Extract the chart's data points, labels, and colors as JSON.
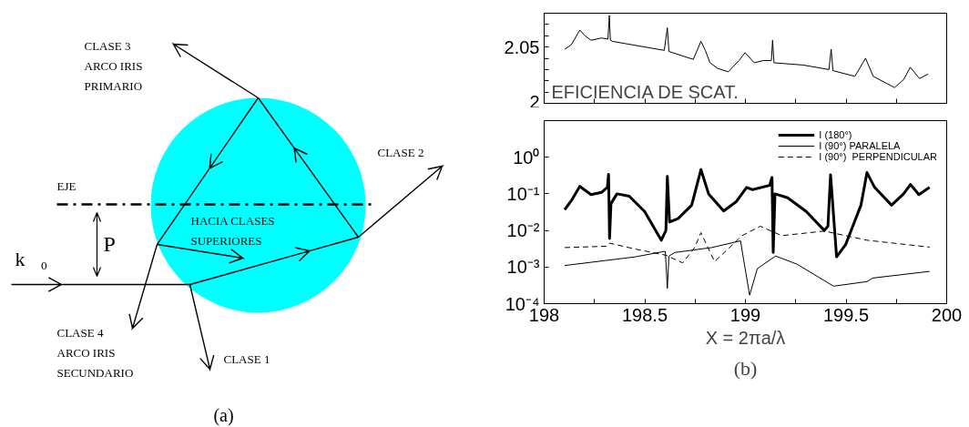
{
  "chart_data": [
    {
      "type": "other",
      "annotations": [
        "CLASE 3",
        "ARCO IRIS",
        "PRIMARIO",
        "CLASE 2",
        "EJE",
        "HACIA CLASES",
        "SUPERIORES",
        "P",
        "k⃗₀",
        "CLASE 4",
        "ARCO IRIS",
        "SECUNDARIO",
        "CLASE 1",
        "(a)"
      ]
    },
    {
      "type": "line",
      "annotations": [
        "EFICIENCIA DE SCAT."
      ],
      "xlim": [
        198,
        200
      ],
      "xticks": [
        {
          "value": 198,
          "label": null
        },
        {
          "value": 198.25,
          "label": null
        },
        {
          "value": 198.5,
          "label": null
        },
        {
          "value": 198.75,
          "label": null
        },
        {
          "value": 199,
          "label": null
        },
        {
          "value": 199.25,
          "label": null
        },
        {
          "value": 199.5,
          "label": null
        },
        {
          "value": 199.75,
          "label": null
        },
        {
          "value": 200,
          "label": null
        }
      ],
      "ylim": [
        2,
        2.08
      ],
      "yticks": [
        2,
        {
          "value": 2.01,
          "label": null
        },
        {
          "value": 2.02,
          "label": null
        },
        {
          "value": 2.03,
          "label": null
        },
        {
          "value": 2.04,
          "label": null
        },
        2.05,
        {
          "value": 2.06,
          "label": null
        },
        {
          "value": 2.07,
          "label": null
        },
        {
          "value": 2.08,
          "label": null
        }
      ],
      "tick_labels": "y",
      "grid": false,
      "legend": false,
      "series": [
        {
          "color": "#000000",
          "x": [
            198.102,
            198.135,
            198.177,
            198.203,
            198.233,
            198.286,
            198.317,
            198.324,
            198.329,
            198.34,
            198.597,
            198.612,
            198.62,
            198.741,
            198.779,
            198.801,
            198.824,
            198.862,
            198.915,
            198.968,
            198.998,
            199.044,
            199.089,
            199.129,
            199.135,
            199.142,
            199.286,
            199.415,
            199.426,
            199.435,
            199.544,
            199.597,
            199.635,
            199.741,
            199.786,
            199.819,
            199.865,
            199.908
          ],
          "values": [
            2.048,
            2.052,
            2.065,
            2.06,
            2.056,
            2.058,
            2.057,
            2.078,
            2.056,
            2.055,
            2.047,
            2.067,
            2.046,
            2.039,
            2.055,
            2.047,
            2.036,
            2.031,
            2.028,
            2.038,
            2.045,
            2.036,
            2.038,
            2.038,
            2.056,
            2.036,
            2.034,
            2.03,
            2.048,
            2.029,
            2.024,
            2.04,
            2.024,
            2.014,
            2.021,
            2.032,
            2.022,
            2.026
          ]
        }
      ]
    },
    {
      "type": "line",
      "xlabel": "X = 2πa/λ",
      "annotations": [
        "(b)"
      ],
      "log": "y",
      "grid": false,
      "legend": "top right",
      "xlim": [
        198,
        200
      ],
      "xticks": [
        198,
        {
          "value": 198.25,
          "label": null
        },
        198.5,
        {
          "value": 198.75,
          "label": null
        },
        199,
        {
          "value": 199.25,
          "label": null
        },
        199.5,
        {
          "value": 199.75,
          "label": null
        },
        200
      ],
      "ylim": [
        0.0001,
        10
      ],
      "yticks": [
        {
          "value": 0.0001,
          "label": "10⁻⁴"
        },
        {
          "value": 0.001,
          "label": "10⁻³"
        },
        {
          "value": 0.01,
          "label": "10⁻²"
        },
        {
          "value": 0.1,
          "label": "10⁻¹"
        },
        {
          "value": 1,
          "label": "10⁰"
        }
      ],
      "series": [
        {
          "name": "I (180°)",
          "color": "#000000",
          "x": [
            198.102,
            198.135,
            198.177,
            198.233,
            198.286,
            198.314,
            198.32,
            198.325,
            198.332,
            198.362,
            198.423,
            198.499,
            198.582,
            198.605,
            198.612,
            198.623,
            198.665,
            198.733,
            198.779,
            198.817,
            198.892,
            198.953,
            199.006,
            199.036,
            199.12,
            199.132,
            199.138,
            199.147,
            199.21,
            199.302,
            199.392,
            199.41,
            199.423,
            199.43,
            199.453,
            199.498,
            199.574,
            199.604,
            199.642,
            199.726,
            199.786,
            199.82,
            199.862,
            199.915
          ],
          "values": [
            0.037,
            0.065,
            0.16,
            0.095,
            0.11,
            0.15,
            0.34,
            0.006,
            0.054,
            0.1,
            0.086,
            0.033,
            0.0054,
            0.01,
            0.3,
            0.017,
            0.021,
            0.049,
            0.46,
            0.1,
            0.034,
            0.06,
            0.15,
            0.13,
            0.17,
            0.28,
            0.0025,
            0.1,
            0.078,
            0.033,
            0.01,
            0.013,
            0.33,
            0.1,
            0.0019,
            0.0041,
            0.049,
            0.38,
            0.15,
            0.049,
            0.1,
            0.18,
            0.095,
            0.15
          ]
        },
        {
          "name": "I (90°) PARALELA",
          "color": "#000000",
          "x": [
            198.102,
            198.302,
            198.453,
            198.602,
            198.612,
            198.62,
            198.65,
            198.832,
            198.976,
            198.991,
            199.021,
            199.059,
            199.15,
            199.256,
            199.438,
            199.604,
            199.632,
            199.915
          ],
          "values": [
            0.0011,
            0.0015,
            0.0019,
            0.0027,
            0.00026,
            0.002,
            0.0025,
            0.0034,
            0.0052,
            0.0016,
            0.00017,
            0.0009,
            0.002,
            0.0012,
            0.0003,
            0.0004,
            0.0005,
            0.00076
          ]
        },
        {
          "name": "I (90°)  PERPENDICULAR",
          "color": "#000000",
          "line_style": "dashed",
          "x": [
            198.102,
            198.309,
            198.324,
            198.453,
            198.605,
            198.688,
            198.748,
            198.779,
            198.847,
            198.983,
            199.074,
            199.18,
            199.392,
            199.604,
            199.915
          ],
          "values": [
            0.0034,
            0.0037,
            0.0045,
            0.0031,
            0.0021,
            0.0013,
            0.0034,
            0.0087,
            0.0014,
            0.0072,
            0.013,
            0.0072,
            0.0096,
            0.0054,
            0.0035
          ]
        }
      ]
    }
  ]
}
